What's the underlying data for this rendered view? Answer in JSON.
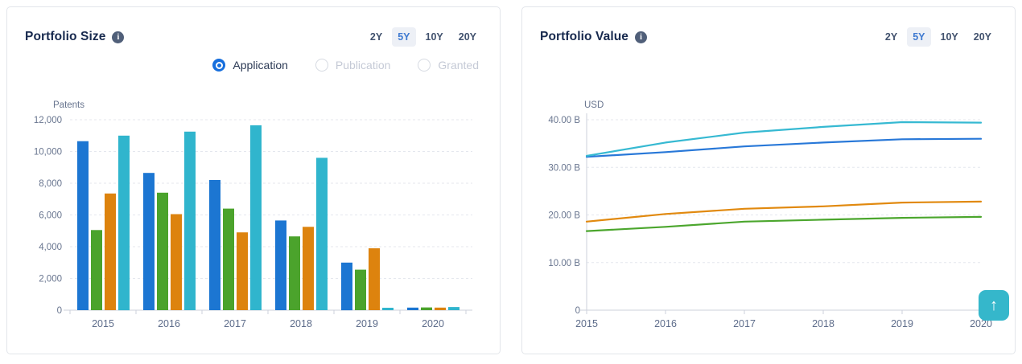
{
  "panels": {
    "size": {
      "title": "Portfolio Size",
      "info_icon": "i",
      "ranges": [
        "2Y",
        "5Y",
        "10Y",
        "20Y"
      ],
      "selected_range": "5Y",
      "radios": [
        {
          "label": "Application",
          "selected": true
        },
        {
          "label": "Publication",
          "selected": false
        },
        {
          "label": "Granted",
          "selected": false
        }
      ]
    },
    "value": {
      "title": "Portfolio Value",
      "info_icon": "i",
      "ranges": [
        "2Y",
        "5Y",
        "10Y",
        "20Y"
      ],
      "selected_range": "5Y"
    }
  },
  "chart_data": [
    {
      "type": "bar",
      "title": "Portfolio Size",
      "unit_label": "Patents",
      "categories": [
        "2015",
        "2016",
        "2017",
        "2018",
        "2019",
        "2020"
      ],
      "series": [
        {
          "name": "series-blue",
          "color": "#1c76d2",
          "values": [
            10650,
            8650,
            8200,
            5650,
            3000,
            160
          ]
        },
        {
          "name": "series-green",
          "color": "#4ba32c",
          "values": [
            5050,
            7400,
            6400,
            4650,
            2550,
            170
          ]
        },
        {
          "name": "series-orange",
          "color": "#dd830e",
          "values": [
            7350,
            6050,
            4900,
            5250,
            3900,
            160
          ]
        },
        {
          "name": "series-cyan",
          "color": "#30b5cd",
          "values": [
            11000,
            11250,
            11650,
            9600,
            150,
            200
          ]
        }
      ],
      "ylim": [
        0,
        12000
      ],
      "yticks": [
        0,
        2000,
        4000,
        6000,
        8000,
        10000,
        12000
      ],
      "grid": "horizontal-dashed",
      "legend": "none"
    },
    {
      "type": "line",
      "title": "Portfolio Value",
      "unit_label": "USD",
      "x": [
        "2015",
        "2016",
        "2017",
        "2018",
        "2019",
        "2020"
      ],
      "series": [
        {
          "name": "series-green",
          "color": "#4ba62d",
          "values": [
            16.6,
            17.5,
            18.6,
            19.0,
            19.4,
            19.6
          ]
        },
        {
          "name": "series-orange",
          "color": "#e1890e",
          "values": [
            18.6,
            20.2,
            21.3,
            21.8,
            22.6,
            22.8
          ]
        },
        {
          "name": "series-blue",
          "color": "#2878d8",
          "values": [
            32.2,
            33.2,
            34.4,
            35.2,
            35.9,
            36.0
          ]
        },
        {
          "name": "series-cyan",
          "color": "#36b9d2",
          "values": [
            32.4,
            35.2,
            37.3,
            38.5,
            39.5,
            39.4
          ]
        }
      ],
      "ylim": [
        0,
        40
      ],
      "yticks": [
        0,
        10,
        20,
        30,
        40
      ],
      "ytick_suffix": " B",
      "grid": "horizontal-dashed",
      "legend": "none"
    }
  ],
  "colors": {
    "accent_blue": "#3f7ad1",
    "selected_pill_bg": "#edf0f6",
    "axis_text": "#68758f",
    "category_text": "#5d6c8a",
    "panel_border": "#e2e5ea",
    "scroll_button": "#35b7cb"
  },
  "scroll_top_button": {
    "icon": "up-arrow",
    "glyph": "↑"
  }
}
